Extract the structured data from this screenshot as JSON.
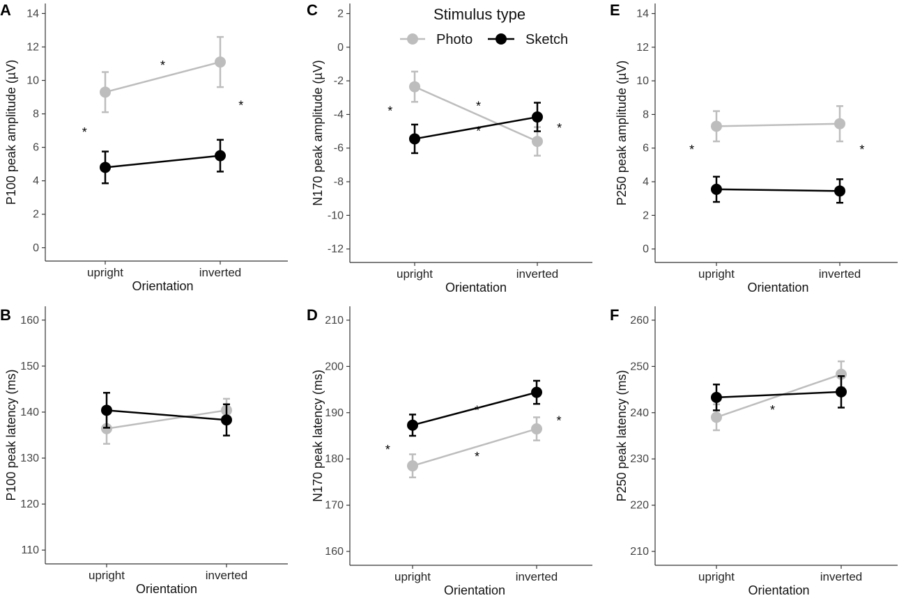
{
  "legend": {
    "title": "Stimulus type",
    "items": [
      {
        "label": "Photo",
        "color": "#bdbdbd"
      },
      {
        "label": "Sketch",
        "color": "#000000"
      }
    ]
  },
  "chart_data": [
    {
      "id": "A",
      "type": "line",
      "ylabel": "P100 peak amplitude  (µV)",
      "xlabel": "Orientation",
      "categories": [
        "upright",
        "inverted"
      ],
      "ylim": [
        -0.8,
        14.6
      ],
      "yticks": [
        0,
        2,
        4,
        6,
        8,
        10,
        12,
        14
      ],
      "series": [
        {
          "name": "Photo",
          "values": [
            9.3,
            11.1
          ],
          "errors": [
            1.2,
            1.5
          ]
        },
        {
          "name": "Sketch",
          "values": [
            4.8,
            5.5
          ],
          "errors": [
            0.95,
            0.95
          ]
        }
      ],
      "annotations": [
        {
          "text": "*",
          "x": 1.5,
          "y": 10.9
        },
        {
          "text": "*",
          "x": 2.18,
          "y": 8.5
        },
        {
          "text": "*",
          "x": 0.82,
          "y": 6.9
        }
      ]
    },
    {
      "id": "B",
      "type": "line",
      "ylabel": "P100 peak latency (ms)",
      "xlabel": "Orientation",
      "categories": [
        "upright",
        "inverted"
      ],
      "ylim": [
        107,
        163
      ],
      "yticks": [
        110,
        120,
        130,
        140,
        150,
        160
      ],
      "series": [
        {
          "name": "Photo",
          "values": [
            136.4,
            140.4
          ],
          "errors": [
            3.3,
            2.5
          ]
        },
        {
          "name": "Sketch",
          "values": [
            140.4,
            138.3
          ],
          "errors": [
            3.8,
            3.4
          ]
        }
      ],
      "annotations": []
    },
    {
      "id": "C",
      "type": "line",
      "ylabel": "N170 peak amplitude  (µV)",
      "xlabel": "Orientation",
      "categories": [
        "upright",
        "inverted"
      ],
      "ylim": [
        -12.8,
        2.6
      ],
      "yticks": [
        -12,
        -10,
        -8,
        -6,
        -4,
        -2,
        0,
        2
      ],
      "series": [
        {
          "name": "Photo",
          "values": [
            -2.35,
            -5.6
          ],
          "errors": [
            0.9,
            0.85
          ]
        },
        {
          "name": "Sketch",
          "values": [
            -5.45,
            -4.15
          ],
          "errors": [
            0.85,
            0.85
          ]
        }
      ],
      "annotations": [
        {
          "text": "*",
          "x": 0.8,
          "y": -3.8
        },
        {
          "text": "*",
          "x": 1.52,
          "y": -3.5
        },
        {
          "text": "*",
          "x": 1.52,
          "y": -5.0
        },
        {
          "text": "*",
          "x": 2.18,
          "y": -4.8
        }
      ]
    },
    {
      "id": "D",
      "type": "line",
      "ylabel": "N170 peak latency (ms)",
      "xlabel": "Orientation",
      "categories": [
        "upright",
        "inverted"
      ],
      "ylim": [
        157,
        213
      ],
      "yticks": [
        160,
        170,
        180,
        190,
        200,
        210
      ],
      "series": [
        {
          "name": "Photo",
          "values": [
            178.5,
            186.5
          ],
          "errors": [
            2.5,
            2.5
          ]
        },
        {
          "name": "Sketch",
          "values": [
            187.3,
            194.4
          ],
          "errors": [
            2.3,
            2.5
          ]
        }
      ],
      "annotations": [
        {
          "text": "*",
          "x": 0.8,
          "y": 182.0
        },
        {
          "text": "*",
          "x": 1.52,
          "y": 190.5
        },
        {
          "text": "*",
          "x": 1.52,
          "y": 180.5
        },
        {
          "text": "*",
          "x": 2.18,
          "y": 188.2
        }
      ]
    },
    {
      "id": "E",
      "type": "line",
      "ylabel": "P250 peak amplitude  (µV)",
      "xlabel": "Orientation",
      "categories": [
        "upright",
        "inverted"
      ],
      "ylim": [
        -0.8,
        14.6
      ],
      "yticks": [
        0,
        2,
        4,
        6,
        8,
        10,
        12,
        14
      ],
      "series": [
        {
          "name": "Photo",
          "values": [
            7.3,
            7.45
          ],
          "errors": [
            0.9,
            1.05
          ]
        },
        {
          "name": "Sketch",
          "values": [
            3.55,
            3.45
          ],
          "errors": [
            0.75,
            0.7
          ]
        }
      ],
      "annotations": [
        {
          "text": "*",
          "x": 0.8,
          "y": 5.9
        },
        {
          "text": "*",
          "x": 2.18,
          "y": 5.9
        }
      ]
    },
    {
      "id": "F",
      "type": "line",
      "ylabel": "P250 peak latency (ms)",
      "xlabel": "Orientation",
      "categories": [
        "upright",
        "inverted"
      ],
      "ylim": [
        207,
        263
      ],
      "yticks": [
        210,
        220,
        230,
        240,
        250,
        260
      ],
      "series": [
        {
          "name": "Photo",
          "values": [
            239.0,
            248.3
          ],
          "errors": [
            2.8,
            2.8
          ]
        },
        {
          "name": "Sketch",
          "values": [
            243.3,
            244.5
          ],
          "errors": [
            2.8,
            3.4
          ]
        }
      ],
      "annotations": [
        {
          "text": "*",
          "x": 1.45,
          "y": 240.6
        }
      ]
    }
  ]
}
